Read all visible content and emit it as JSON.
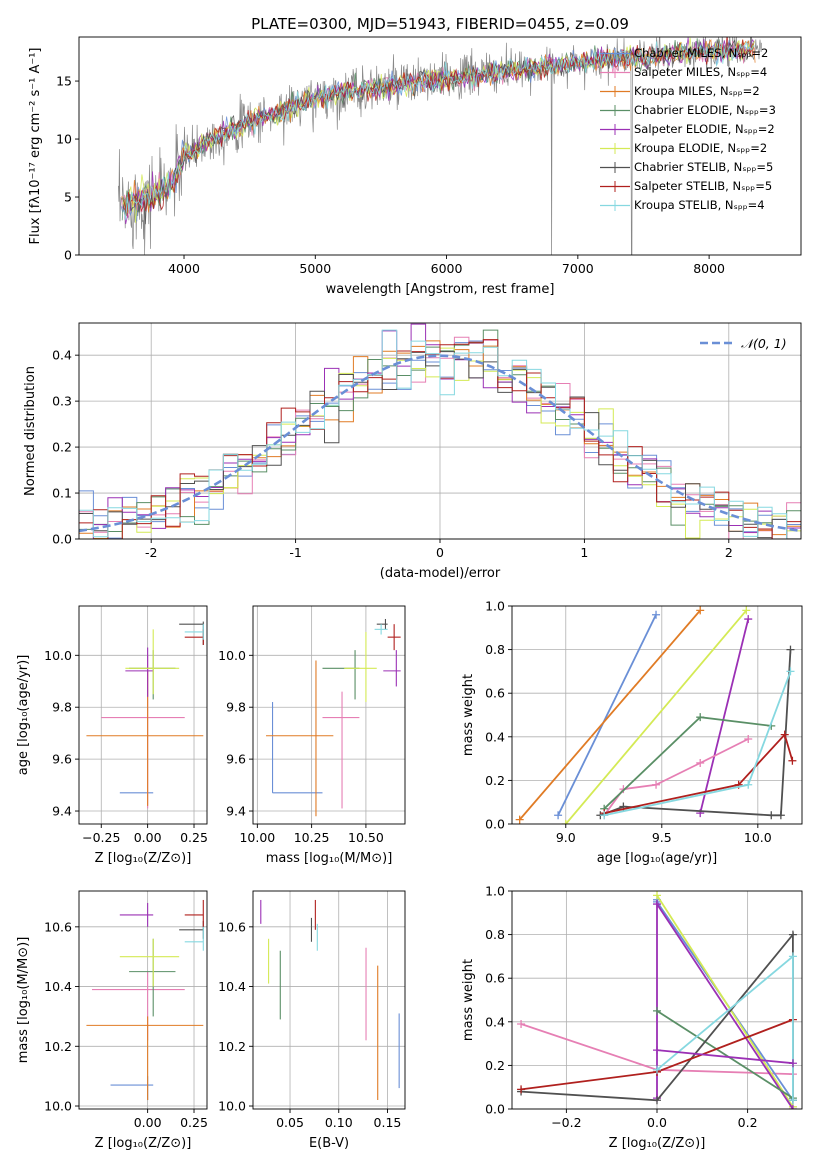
{
  "colors": {
    "Chabrier MILES": "#6a8fd6",
    "Salpeter MILES": "#e67fb4",
    "Kroupa MILES": "#e07b25",
    "Chabrier ELODIE": "#5a8f66",
    "Salpeter ELODIE": "#9b30b5",
    "Kroupa ELODIE": "#d4ea55",
    "Chabrier STELIB": "#505050",
    "Salpeter STELIB": "#b0201e",
    "Kroupa STELIB": "#86d8e0",
    "data": "#888888",
    "normal": "#6a8fd6"
  },
  "chart_data": [
    {
      "id": "spectrum",
      "type": "line",
      "title": "PLATE=0300, MJD=51943, FIBERID=0455, z=0.09",
      "xlabel": "wavelength [Angstrom, rest frame]",
      "ylabel": "Flux [fλ10⁻¹⁷ erg cm⁻² s⁻¹ A⁻¹]",
      "xlim": [
        3200,
        8700
      ],
      "ylim": [
        0,
        18.8
      ],
      "xticks": [
        4000,
        5000,
        6000,
        7000,
        8000
      ],
      "yticks": [
        0,
        5,
        10,
        15
      ],
      "grid": false,
      "legend_position": "top-right",
      "legend": [
        {
          "model": "Chabrier MILES",
          "label": "Chabrier MILES, Nₛₚₚ=2"
        },
        {
          "model": "Salpeter MILES",
          "label": "Salpeter MILES, Nₛₚₚ=4"
        },
        {
          "model": "Kroupa MILES",
          "label": "Kroupa MILES, Nₛₚₚ=2"
        },
        {
          "model": "Chabrier ELODIE",
          "label": "Chabrier ELODIE, Nₛₚₚ=3"
        },
        {
          "model": "Salpeter ELODIE",
          "label": "Salpeter ELODIE, Nₛₚₚ=2"
        },
        {
          "model": "Kroupa ELODIE",
          "label": "Kroupa ELODIE, Nₛₚₚ=2"
        },
        {
          "model": "Chabrier STELIB",
          "label": "Chabrier STELIB, Nₛₚₚ=5"
        },
        {
          "model": "Salpeter STELIB",
          "label": "Salpeter STELIB, Nₛₚₚ=5"
        },
        {
          "model": "Kroupa STELIB",
          "label": "Kroupa STELIB, Nₛₚₚ=4"
        }
      ],
      "continuum": {
        "x": [
          3500,
          3700,
          3900,
          4000,
          4200,
          4500,
          4800,
          5000,
          5300,
          5600,
          6000,
          6300,
          6600,
          7000,
          7400,
          7800,
          8200,
          8400
        ],
        "y": [
          4.0,
          4.8,
          6.0,
          8.5,
          10.0,
          11.5,
          12.7,
          13.5,
          14.2,
          14.6,
          15.2,
          15.6,
          16.0,
          16.6,
          17.0,
          17.4,
          17.7,
          17.8
        ]
      }
    },
    {
      "id": "residuals",
      "type": "bar",
      "xlabel": "(data-model)/error",
      "ylabel": "Normed distribution",
      "xlim": [
        -2.5,
        2.5
      ],
      "ylim": [
        0,
        0.47
      ],
      "xticks": [
        -2,
        -1,
        0,
        1,
        2
      ],
      "yticks": [
        0.0,
        0.1,
        0.2,
        0.3,
        0.4
      ],
      "grid": true,
      "legend_position": "top-right",
      "legend": [
        {
          "label": "𝒩(0, 1)",
          "style": "dashed"
        }
      ],
      "bin_width": 0.1
    },
    {
      "id": "age-vs-z",
      "type": "scatter",
      "xlabel": "Z [log₁₀(Z/Z⊙)]",
      "ylabel": "age  [log₁₀(age/yr)]",
      "xlim": [
        -0.37,
        0.32
      ],
      "ylim": [
        9.35,
        10.19
      ],
      "xticks": [
        -0.25,
        0.0,
        0.25
      ],
      "xtick_labels": [
        "−0.25",
        "0.00",
        "0.25"
      ],
      "yticks": [
        9.4,
        9.6,
        9.8,
        10.0
      ],
      "grid": true,
      "points": [
        {
          "model": "Chabrier MILES",
          "x": 0.0,
          "y": 9.47,
          "ex": [
            -0.15,
            0.03
          ],
          "ey": [
            9.47,
            9.47
          ]
        },
        {
          "model": "Salpeter MILES",
          "x": 0.0,
          "y": 9.76,
          "ex": [
            -0.25,
            0.2
          ],
          "ey": [
            9.41,
            10.0
          ]
        },
        {
          "model": "Kroupa MILES",
          "x": 0.0,
          "y": 9.69,
          "ex": [
            -0.33,
            0.3
          ],
          "ey": [
            9.42,
            9.94
          ]
        },
        {
          "model": "Chabrier ELODIE",
          "x": 0.03,
          "y": 9.95,
          "ex": [
            -0.1,
            0.15
          ],
          "ey": [
            9.83,
            10.02
          ]
        },
        {
          "model": "Salpeter ELODIE",
          "x": 0.0,
          "y": 9.94,
          "ex": [
            -0.12,
            0.03
          ],
          "ey": [
            9.84,
            10.03
          ]
        },
        {
          "model": "Kroupa ELODIE",
          "x": 0.03,
          "y": 9.95,
          "ex": [
            -0.12,
            0.17
          ],
          "ey": [
            9.85,
            10.1
          ]
        },
        {
          "model": "Chabrier STELIB",
          "x": 0.3,
          "y": 10.12,
          "ex": [
            0.17,
            0.3
          ],
          "ey": [
            10.04,
            10.13
          ]
        },
        {
          "model": "Salpeter STELIB",
          "x": 0.3,
          "y": 10.07,
          "ex": [
            0.2,
            0.3
          ],
          "ey": [
            10.04,
            10.1
          ]
        },
        {
          "model": "Kroupa STELIB",
          "x": 0.3,
          "y": 10.09,
          "ex": [
            0.2,
            0.3
          ],
          "ey": [
            10.06,
            10.12
          ]
        }
      ]
    },
    {
      "id": "age-vs-mass",
      "type": "scatter",
      "xlabel": "mass [log₁₀(M/M⊙)]",
      "ylabel": "",
      "xlim": [
        9.98,
        10.68
      ],
      "ylim": [
        9.35,
        10.19
      ],
      "xticks": [
        10.0,
        10.25,
        10.5
      ],
      "xtick_labels": [
        "10.00",
        "10.25",
        "10.50"
      ],
      "yticks": [
        9.4,
        9.6,
        9.8,
        10.0
      ],
      "grid": true,
      "points": [
        {
          "model": "Chabrier MILES",
          "x": 10.07,
          "y": 9.47,
          "ex": [
            10.07,
            10.3
          ],
          "ey": [
            9.47,
            9.82
          ]
        },
        {
          "model": "Salpeter MILES",
          "x": 10.39,
          "y": 9.76,
          "ex": [
            10.3,
            10.47
          ],
          "ey": [
            9.41,
            9.86
          ]
        },
        {
          "model": "Kroupa MILES",
          "x": 10.27,
          "y": 9.69,
          "ex": [
            10.04,
            10.35
          ],
          "ey": [
            9.38,
            9.98
          ]
        },
        {
          "model": "Chabrier ELODIE",
          "x": 10.45,
          "y": 9.95,
          "ex": [
            10.3,
            10.47
          ],
          "ey": [
            9.83,
            10.02
          ]
        },
        {
          "model": "Salpeter ELODIE",
          "x": 10.64,
          "y": 9.94,
          "ex": [
            10.58,
            10.66
          ],
          "ey": [
            9.88,
            10.02
          ]
        },
        {
          "model": "Kroupa ELODIE",
          "x": 10.5,
          "y": 9.95,
          "ex": [
            10.4,
            10.55
          ],
          "ey": [
            9.82,
            10.09
          ]
        },
        {
          "model": "Chabrier STELIB",
          "x": 10.59,
          "y": 10.12,
          "ex": [
            10.55,
            10.6
          ],
          "ey": [
            10.1,
            10.14
          ]
        },
        {
          "model": "Salpeter STELIB",
          "x": 10.63,
          "y": 10.07,
          "ex": [
            10.6,
            10.66
          ],
          "ey": [
            10.02,
            10.12
          ]
        },
        {
          "model": "Kroupa STELIB",
          "x": 10.57,
          "y": 10.1,
          "ex": [
            10.54,
            10.6
          ],
          "ey": [
            10.08,
            10.12
          ]
        }
      ]
    },
    {
      "id": "weight-vs-age",
      "type": "line",
      "xlabel": "age  [log₁₀(age/yr)]",
      "ylabel": "mass weight",
      "xlim": [
        8.72,
        10.23
      ],
      "ylim": [
        0,
        1.0
      ],
      "xticks": [
        9.0,
        9.5,
        10.0
      ],
      "xtick_labels": [
        "9.0",
        "9.5",
        "10.0"
      ],
      "yticks": [
        0.0,
        0.2,
        0.4,
        0.6,
        0.8,
        1.0
      ],
      "grid": true,
      "series": [
        {
          "model": "Chabrier MILES",
          "x": [
            8.96,
            9.47
          ],
          "y": [
            0.04,
            0.96
          ]
        },
        {
          "model": "Kroupa MILES",
          "x": [
            8.76,
            9.7
          ],
          "y": [
            0.02,
            0.98
          ]
        },
        {
          "model": "Kroupa ELODIE",
          "x": [
            9.0,
            9.94
          ],
          "y": [
            0.0,
            0.98
          ]
        },
        {
          "model": "Salpeter ELODIE",
          "x": [
            9.7,
            9.95
          ],
          "y": [
            0.05,
            0.94
          ]
        },
        {
          "model": "Salpeter MILES",
          "x": [
            9.2,
            9.3,
            9.47,
            9.7,
            9.95
          ],
          "y": [
            0.04,
            0.16,
            0.18,
            0.28,
            0.39
          ]
        },
        {
          "model": "Chabrier ELODIE",
          "x": [
            9.2,
            9.7,
            10.07
          ],
          "y": [
            0.07,
            0.49,
            0.45
          ]
        },
        {
          "model": "Chabrier STELIB",
          "x": [
            9.18,
            9.3,
            10.07,
            10.12,
            10.17
          ],
          "y": [
            0.04,
            0.08,
            0.04,
            0.04,
            0.8
          ]
        },
        {
          "model": "Salpeter STELIB",
          "x": [
            9.2,
            9.9,
            10.14,
            10.18
          ],
          "y": [
            0.05,
            0.18,
            0.41,
            0.29
          ]
        },
        {
          "model": "Kroupa STELIB",
          "x": [
            9.2,
            9.95,
            10.17
          ],
          "y": [
            0.04,
            0.18,
            0.7
          ]
        }
      ]
    },
    {
      "id": "mass-vs-z",
      "type": "scatter",
      "xlabel": "Z [log₁₀(Z/Z⊙)]",
      "ylabel": "mass [log₁₀(M/M⊙)]",
      "xlim": [
        -0.37,
        0.32
      ],
      "ylim": [
        9.99,
        10.72
      ],
      "xticks": [
        0.0,
        0.25
      ],
      "xtick_labels": [
        "0.00",
        "0.25"
      ],
      "yticks": [
        10.0,
        10.2,
        10.4,
        10.6
      ],
      "grid": true,
      "points": [
        {
          "model": "Chabrier MILES",
          "x": 0.0,
          "y": 10.07,
          "ex": [
            -0.2,
            0.03
          ],
          "ey": [
            10.02,
            10.1
          ]
        },
        {
          "model": "Salpeter MILES",
          "x": 0.0,
          "y": 10.39,
          "ex": [
            -0.3,
            0.2
          ],
          "ey": [
            10.22,
            10.45
          ]
        },
        {
          "model": "Kroupa MILES",
          "x": 0.0,
          "y": 10.27,
          "ex": [
            -0.33,
            0.3
          ],
          "ey": [
            10.02,
            10.3
          ]
        },
        {
          "model": "Chabrier ELODIE",
          "x": 0.03,
          "y": 10.45,
          "ex": [
            -0.1,
            0.15
          ],
          "ey": [
            10.3,
            10.56
          ]
        },
        {
          "model": "Salpeter ELODIE",
          "x": 0.0,
          "y": 10.64,
          "ex": [
            -0.15,
            0.03
          ],
          "ey": [
            10.6,
            10.68
          ]
        },
        {
          "model": "Kroupa ELODIE",
          "x": 0.03,
          "y": 10.5,
          "ex": [
            -0.15,
            0.17
          ],
          "ey": [
            10.4,
            10.56
          ]
        },
        {
          "model": "Chabrier STELIB",
          "x": 0.3,
          "y": 10.59,
          "ex": [
            0.17,
            0.3
          ],
          "ey": [
            10.56,
            10.62
          ]
        },
        {
          "model": "Salpeter STELIB",
          "x": 0.3,
          "y": 10.64,
          "ex": [
            0.2,
            0.3
          ],
          "ey": [
            10.6,
            10.69
          ]
        },
        {
          "model": "Kroupa STELIB",
          "x": 0.3,
          "y": 10.55,
          "ex": [
            0.2,
            0.3
          ],
          "ey": [
            10.52,
            10.6
          ]
        }
      ]
    },
    {
      "id": "mass-vs-ebv",
      "type": "scatter",
      "xlabel": "E(B-V)",
      "ylabel": "",
      "xlim": [
        0.012,
        0.168
      ],
      "ylim": [
        9.99,
        10.72
      ],
      "xticks": [
        0.05,
        0.1,
        0.15
      ],
      "xtick_labels": [
        "0.05",
        "0.10",
        "0.15"
      ],
      "yticks": [
        10.0,
        10.2,
        10.4,
        10.6
      ],
      "grid": true,
      "points": [
        {
          "model": "Chabrier MILES",
          "x": 0.162,
          "ey": [
            10.06,
            10.31
          ]
        },
        {
          "model": "Salpeter MILES",
          "x": 0.128,
          "ey": [
            10.22,
            10.53
          ]
        },
        {
          "model": "Kroupa MILES",
          "x": 0.14,
          "ey": [
            10.02,
            10.47
          ]
        },
        {
          "model": "Chabrier ELODIE",
          "x": 0.04,
          "ey": [
            10.29,
            10.52
          ]
        },
        {
          "model": "Salpeter ELODIE",
          "x": 0.02,
          "ey": [
            10.61,
            10.69
          ]
        },
        {
          "model": "Kroupa ELODIE",
          "x": 0.028,
          "ey": [
            10.41,
            10.56
          ]
        },
        {
          "model": "Chabrier STELIB",
          "x": 0.072,
          "ey": [
            10.55,
            10.63
          ]
        },
        {
          "model": "Salpeter STELIB",
          "x": 0.076,
          "ey": [
            10.59,
            10.69
          ]
        },
        {
          "model": "Kroupa STELIB",
          "x": 0.078,
          "ey": [
            10.52,
            10.61
          ]
        }
      ]
    },
    {
      "id": "weight-vs-z",
      "type": "line",
      "xlabel": "Z [log₁₀(Z/Z⊙)]",
      "ylabel": "mass weight",
      "xlim": [
        -0.32,
        0.32
      ],
      "ylim": [
        0,
        1.0
      ],
      "xticks": [
        -0.2,
        0.0,
        0.2
      ],
      "xtick_labels": [
        "−0.2",
        "0.0",
        "0.2"
      ],
      "yticks": [
        0.0,
        0.2,
        0.4,
        0.6,
        0.8,
        1.0
      ],
      "grid": true,
      "series": [
        {
          "model": "Salpeter MILES",
          "x": [
            -0.3,
            0.0,
            0.3
          ],
          "y": [
            0.39,
            0.18,
            0.16
          ]
        },
        {
          "model": "Chabrier MILES",
          "x": [
            0.0,
            0.0,
            0.3
          ],
          "y": [
            0.96,
            0.95,
            0.04
          ]
        },
        {
          "model": "Kroupa ELODIE",
          "x": [
            0.0,
            0.3
          ],
          "y": [
            0.98,
            0.01
          ]
        },
        {
          "model": "Salpeter ELODIE",
          "x": [
            0.0,
            0.0,
            0.3
          ],
          "y": [
            0.05,
            0.94,
            0.0
          ]
        },
        {
          "model": "Chabrier ELODIE",
          "x": [
            0.0,
            0.3
          ],
          "y": [
            0.45,
            0.05
          ]
        },
        {
          "model": "Chabrier STELIB",
          "x": [
            -0.3,
            0.0,
            0.3,
            0.3
          ],
          "y": [
            0.08,
            0.04,
            0.8,
            0.04
          ]
        },
        {
          "model": "Salpeter STELIB",
          "x": [
            -0.3,
            0.0,
            0.3
          ],
          "y": [
            0.09,
            0.17,
            0.41
          ]
        },
        {
          "model": "Kroupa STELIB",
          "x": [
            0.0,
            0.3,
            0.3
          ],
          "y": [
            0.18,
            0.7,
            0.04
          ]
        },
        {
          "model": "Salpeter ELODIE",
          "x": [
            0.0,
            0.3
          ],
          "y": [
            0.27,
            0.21
          ]
        }
      ]
    }
  ]
}
